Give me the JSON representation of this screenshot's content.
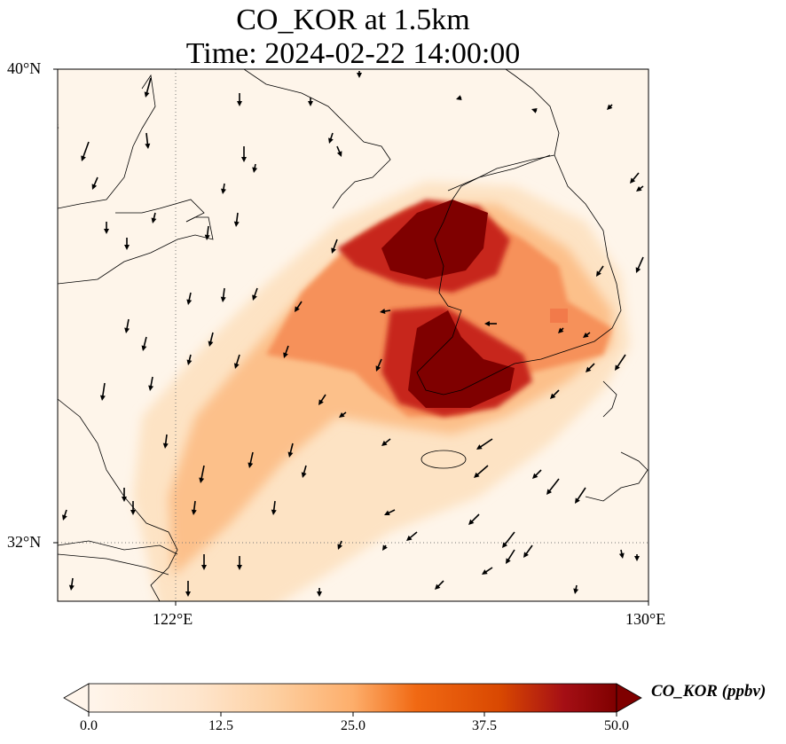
{
  "title": {
    "line1": "CO_KOR at 1.5km",
    "line2": "Time: 2024-02-22 14:00:00"
  },
  "axes": {
    "y_ticks": [
      "40°N",
      "32°N"
    ],
    "x_ticks": [
      "122°E",
      "130°E"
    ],
    "lon_range": [
      120,
      130
    ],
    "lat_range": [
      31,
      40
    ]
  },
  "colorbar": {
    "label": "CO_KOR (ppbv)",
    "ticks": [
      "0.0",
      "12.5",
      "25.0",
      "37.5",
      "50.0"
    ],
    "colors": [
      "#fff5eb",
      "#fdd0a2",
      "#fd8d3c",
      "#d94801",
      "#a50f15",
      "#7f0000"
    ],
    "extend": "both"
  },
  "map": {
    "background": "#fef5ea",
    "gridlines": "dotted",
    "plume_color": "#7f0000",
    "wind_arrows": "black"
  }
}
